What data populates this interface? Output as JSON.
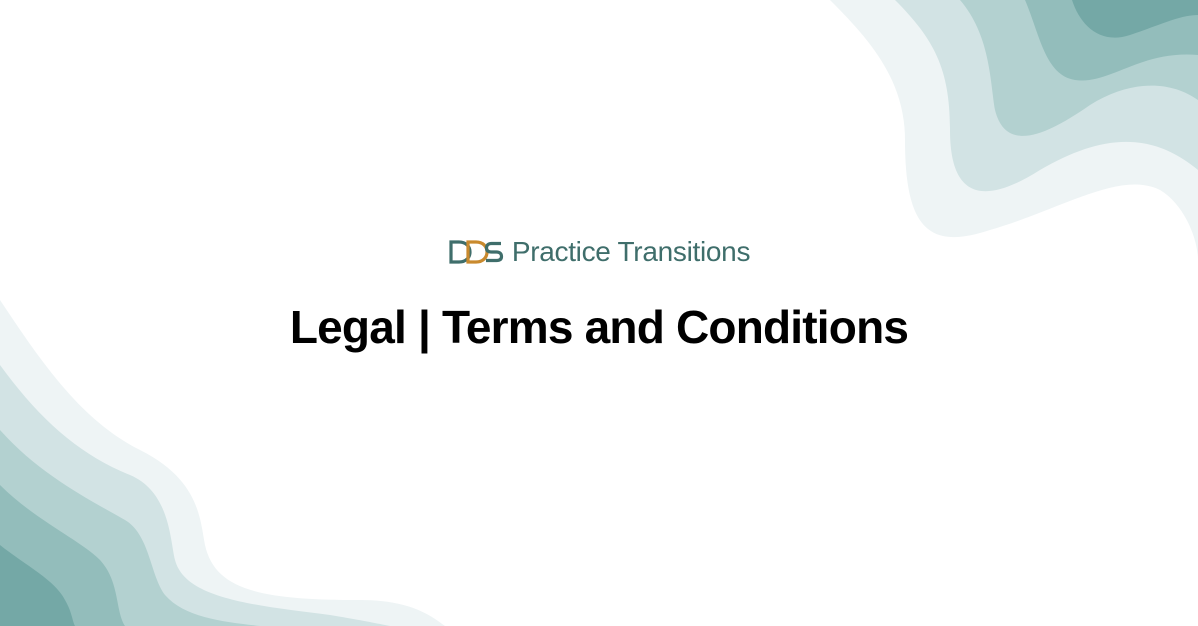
{
  "logo": {
    "mark_text": "DDS",
    "name": "Practice Transitions"
  },
  "page": {
    "title": "Legal | Terms and Conditions"
  },
  "colors": {
    "brand_teal": "#3f6e6b",
    "brand_orange": "#c98a2e",
    "wave_1": "#eef4f5",
    "wave_2": "#d2e3e4",
    "wave_3": "#b3d1d0",
    "wave_4": "#93bdbb",
    "wave_5": "#74a8a6"
  }
}
